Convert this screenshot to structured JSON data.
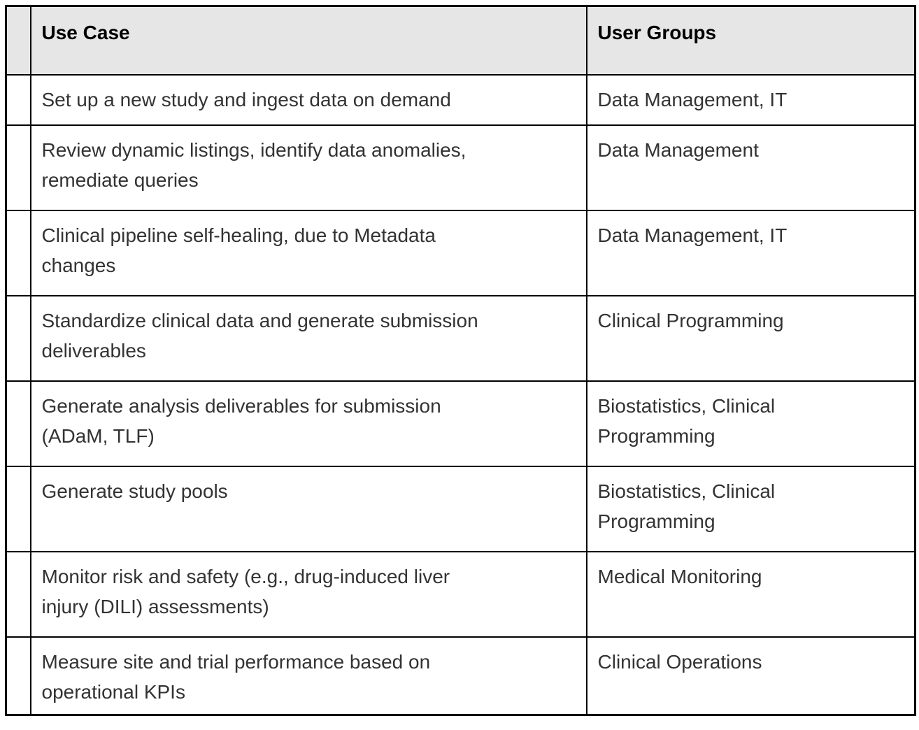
{
  "colors": {
    "header_bg": "#e6e6e6",
    "border": "#000000",
    "header_text": "#000000",
    "body_text": "#333333",
    "page_bg": "#ffffff"
  },
  "table": {
    "header": {
      "corner": "",
      "use_case": "Use Case",
      "user_groups": "User Groups"
    },
    "rows": [
      {
        "use_case": "Set up a new study and ingest data on demand",
        "user_groups": "Data Management, IT"
      },
      {
        "use_case": "Review dynamic listings, identify data anomalies,\nremediate queries",
        "user_groups": "Data Management"
      },
      {
        "use_case": "Clinical pipeline self-healing, due to Metadata\nchanges",
        "user_groups": "Data Management, IT"
      },
      {
        "use_case": "Standardize clinical data and generate submission\ndeliverables",
        "user_groups": "Clinical Programming"
      },
      {
        "use_case": "Generate analysis deliverables for submission\n(ADaM, TLF)",
        "user_groups": "Biostatistics, Clinical\nProgramming"
      },
      {
        "use_case": "Generate study pools",
        "user_groups": "Biostatistics, Clinical\nProgramming"
      },
      {
        "use_case": "Monitor risk and safety (e.g., drug-induced liver\ninjury (DILI) assessments)",
        "user_groups": "Medical Monitoring"
      },
      {
        "use_case": "Measure site and trial performance based on\noperational KPIs",
        "user_groups": "Clinical Operations"
      }
    ]
  }
}
